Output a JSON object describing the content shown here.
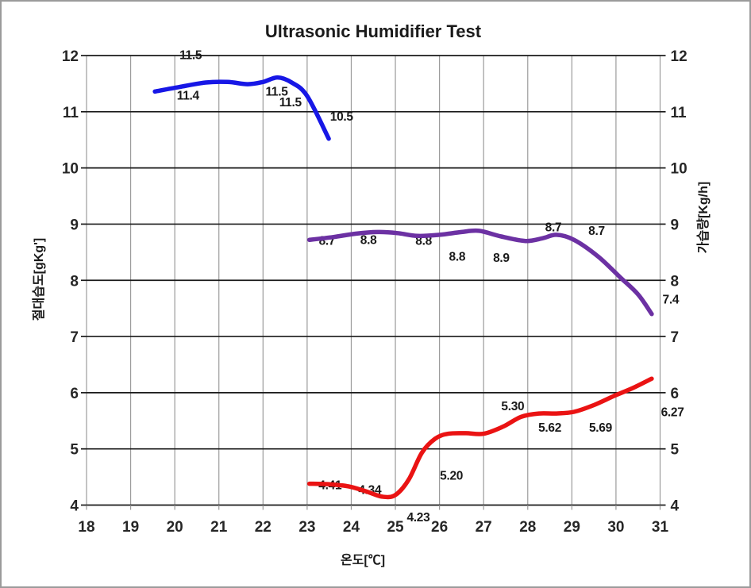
{
  "window": {
    "title": "Ultrasonic Humidifier Test"
  },
  "chart_data": {
    "type": "line",
    "title": "Ultrasonic Humidifier Test",
    "xlabel": "온도[℃]",
    "ylabel_left": "절대습도[gKg']",
    "ylabel_right": "가습량[Kg/h]",
    "xlim": [
      18,
      31
    ],
    "ylim": [
      4,
      12
    ],
    "x_ticks": [
      "18",
      "19",
      "20",
      "21",
      "22",
      "23",
      "24",
      "25",
      "26",
      "27",
      "28",
      "29",
      "30",
      "31"
    ],
    "y_ticks_left": [
      "4",
      "5",
      "6",
      "7",
      "8",
      "9",
      "10",
      "11",
      "12"
    ],
    "y_ticks_right": [
      "4",
      "5",
      "6",
      "7",
      "8",
      "9",
      "10",
      "11",
      "12"
    ],
    "grid": {
      "horizontal": true,
      "vertical": true
    },
    "legend": "none",
    "colors": {
      "right_tick_text": "#1d1df2",
      "right_axis_title": "#ee0000",
      "horizontal_grid": "#1a1a1a",
      "vertical_grid": "#9b9b9b"
    },
    "series": [
      {
        "name": "series-blue",
        "color": "#1717e6",
        "points": [
          [
            19.55,
            11.36
          ],
          [
            20.1,
            11.44
          ],
          [
            20.7,
            11.52
          ],
          [
            21.2,
            11.53
          ],
          [
            21.65,
            11.49
          ],
          [
            22.0,
            11.53
          ],
          [
            22.33,
            11.61
          ],
          [
            22.65,
            11.52
          ],
          [
            23.0,
            11.28
          ],
          [
            23.49,
            10.52
          ]
        ],
        "labels": [
          {
            "text": "11.5",
            "x": 20.36,
            "y": 12.01
          },
          {
            "text": "11.4",
            "x": 20.3,
            "y": 11.29
          },
          {
            "text": "11.5",
            "x": 22.31,
            "y": 11.36
          },
          {
            "text": "11.5",
            "x": 22.62,
            "y": 11.17
          },
          {
            "text": "10.5",
            "x": 23.78,
            "y": 10.91
          }
        ]
      },
      {
        "name": "series-purple",
        "color": "#6c31a3",
        "points": [
          [
            23.05,
            8.72
          ],
          [
            23.6,
            8.77
          ],
          [
            24.1,
            8.83
          ],
          [
            24.6,
            8.86
          ],
          [
            25.05,
            8.84
          ],
          [
            25.5,
            8.79
          ],
          [
            26.0,
            8.81
          ],
          [
            26.5,
            8.86
          ],
          [
            26.9,
            8.88
          ],
          [
            27.4,
            8.78
          ],
          [
            27.95,
            8.7
          ],
          [
            28.35,
            8.75
          ],
          [
            28.65,
            8.81
          ],
          [
            29.05,
            8.72
          ],
          [
            29.6,
            8.42
          ],
          [
            30.1,
            8.05
          ],
          [
            30.5,
            7.75
          ],
          [
            30.81,
            7.4
          ]
        ],
        "labels": [
          {
            "text": "8.7",
            "x": 23.45,
            "y": 8.7
          },
          {
            "text": "8.8",
            "x": 24.39,
            "y": 8.72
          },
          {
            "text": "8.8",
            "x": 25.64,
            "y": 8.7
          },
          {
            "text": "8.8",
            "x": 26.4,
            "y": 8.42
          },
          {
            "text": "8.9",
            "x": 27.4,
            "y": 8.4
          },
          {
            "text": "8.7",
            "x": 28.58,
            "y": 8.94
          },
          {
            "text": "8.7",
            "x": 29.56,
            "y": 8.88
          },
          {
            "text": "7.4",
            "x": 31.24,
            "y": 7.66
          }
        ]
      },
      {
        "name": "series-red",
        "color": "#ea1313",
        "points": [
          [
            23.05,
            4.38
          ],
          [
            23.5,
            4.37
          ],
          [
            23.95,
            4.33
          ],
          [
            24.35,
            4.24
          ],
          [
            24.7,
            4.15
          ],
          [
            25.0,
            4.18
          ],
          [
            25.3,
            4.45
          ],
          [
            25.6,
            4.93
          ],
          [
            25.9,
            5.18
          ],
          [
            26.2,
            5.27
          ],
          [
            26.6,
            5.28
          ],
          [
            27.0,
            5.27
          ],
          [
            27.45,
            5.4
          ],
          [
            27.85,
            5.57
          ],
          [
            28.25,
            5.63
          ],
          [
            28.65,
            5.63
          ],
          [
            29.05,
            5.66
          ],
          [
            29.5,
            5.78
          ],
          [
            29.95,
            5.94
          ],
          [
            30.4,
            6.09
          ],
          [
            30.81,
            6.25
          ]
        ],
        "labels": [
          {
            "text": "4.41",
            "x": 23.52,
            "y": 4.35
          },
          {
            "text": "4.34",
            "x": 24.42,
            "y": 4.27
          },
          {
            "text": "4.23",
            "x": 25.52,
            "y": 3.78
          },
          {
            "text": "5.20",
            "x": 26.27,
            "y": 4.52
          },
          {
            "text": "5.30",
            "x": 27.66,
            "y": 5.76
          },
          {
            "text": "5.62",
            "x": 28.5,
            "y": 5.38
          },
          {
            "text": "5.69",
            "x": 29.65,
            "y": 5.38
          },
          {
            "text": "6.27",
            "x": 31.28,
            "y": 5.65
          }
        ]
      }
    ]
  }
}
